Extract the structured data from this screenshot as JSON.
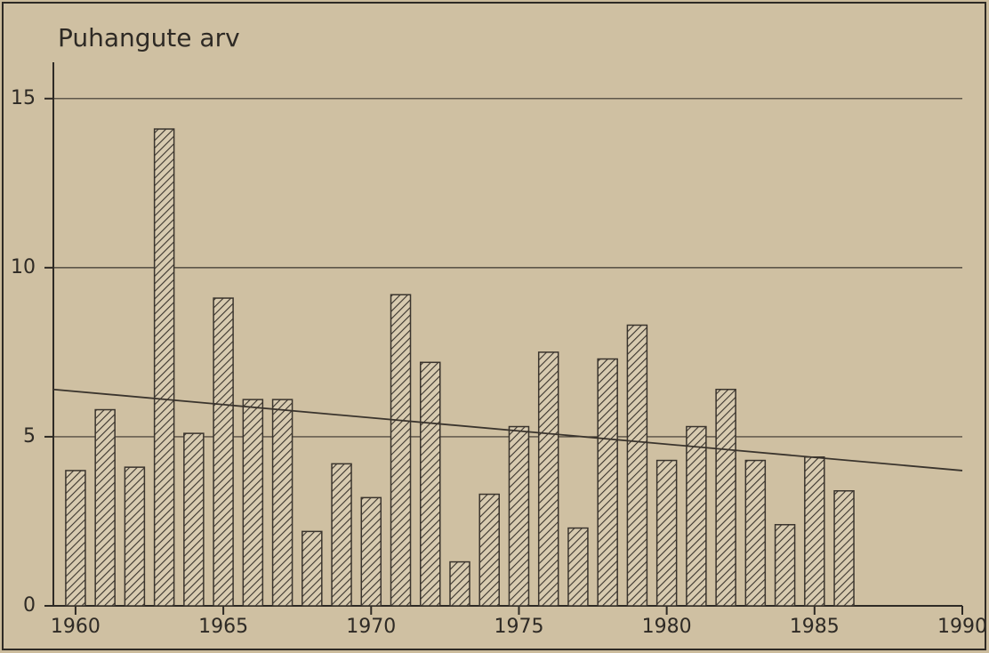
{
  "chart_data": {
    "type": "bar",
    "title": "Puhangute arv",
    "x": [
      1960,
      1961,
      1962,
      1963,
      1964,
      1965,
      1966,
      1967,
      1968,
      1969,
      1970,
      1971,
      1972,
      1973,
      1974,
      1975,
      1976,
      1977,
      1978,
      1979,
      1980,
      1981,
      1982,
      1983,
      1984,
      1985,
      1986
    ],
    "values": [
      4.0,
      5.8,
      4.1,
      14.1,
      5.1,
      9.1,
      6.1,
      6.1,
      2.2,
      4.2,
      3.2,
      9.2,
      7.2,
      1.3,
      3.3,
      5.3,
      7.5,
      2.3,
      7.3,
      8.3,
      4.3,
      5.3,
      6.4,
      4.3,
      2.4,
      4.4,
      3.4
    ],
    "color": "#3a342d",
    "trend": {
      "x": [
        1959.25,
        1990
      ],
      "values": [
        6.4,
        4.0
      ],
      "color": "#3a342d"
    },
    "xlim": [
      1959.25,
      1990
    ],
    "xticks": [
      1960,
      1965,
      1970,
      1975,
      1980,
      1985,
      1990
    ],
    "ylim": [
      0,
      16.6
    ],
    "yticks": [
      0,
      5,
      10,
      15
    ],
    "grid": true
  }
}
